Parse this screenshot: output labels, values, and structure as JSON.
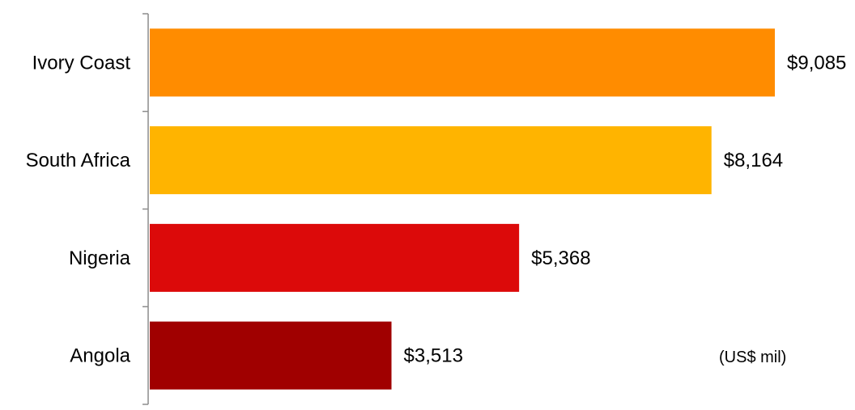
{
  "chart_data": {
    "type": "bar",
    "orientation": "horizontal",
    "categories": [
      "Ivory Coast",
      "South Africa",
      "Nigeria",
      "Angola"
    ],
    "values": [
      9085,
      8164,
      5368,
      3513
    ],
    "value_labels": [
      "$9,085",
      "$8,164",
      "$5,368",
      "$3,513"
    ],
    "colors": [
      "#FF8C00",
      "#FFB400",
      "#DC0A0A",
      "#A00000"
    ],
    "unit_note": "(US$ mil)",
    "title": "",
    "xlabel": "",
    "ylabel": "",
    "xlim": [
      0,
      9085
    ],
    "grid": false,
    "legend": "none"
  }
}
